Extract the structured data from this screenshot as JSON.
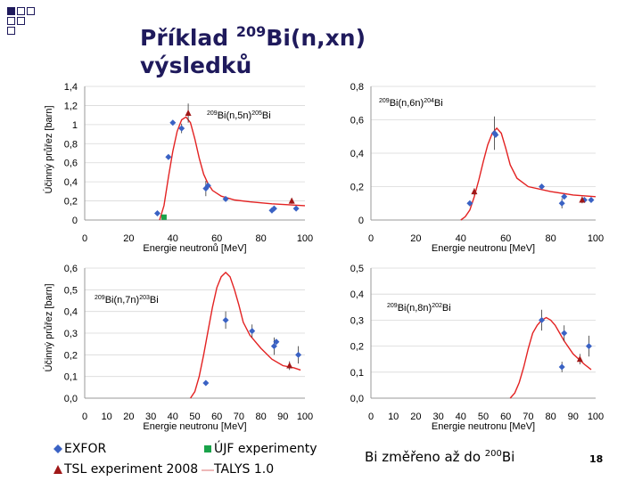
{
  "slide": {
    "title_line1_prefix": "Příklad ",
    "title_sup": "209",
    "title_line1_suffix": "Bi(n,xn)",
    "title_line2": "výsledků",
    "note_prefix": "Bi změřeno až do ",
    "note_sup": "200",
    "note_suffix": "Bi",
    "page_number": "18"
  },
  "legend": {
    "exfor": "EXFOR",
    "ujf": "ÚJF experimenty",
    "tsl": "TSL experiment 2008",
    "talys": "TALYS 1.0"
  },
  "colors": {
    "exfor": "#3a62c4",
    "ujf": "#1aa34a",
    "tsl": "#a01818",
    "talys": "#e32222",
    "title": "#1f1a5c",
    "corner": "#1f1a5c"
  },
  "chart_data": [
    {
      "type": "scatter",
      "title_sup": "209",
      "title_main": "Bi(n,5n)",
      "title_sup2": "205",
      "title_end": "Bi",
      "xlabel": "Energie neutronů [MeV]",
      "ylabel": "Účinný průřez [barn]",
      "xlim": [
        0,
        100
      ],
      "ylim": [
        0,
        1.4
      ],
      "xticks": [
        "0",
        "20",
        "40",
        "60",
        "80",
        "100"
      ],
      "yticks": [
        "0",
        "0,2",
        "0,4",
        "0,6",
        "0,8",
        "1",
        "1,2",
        "1,4"
      ],
      "ytick_values": [
        0,
        0.2,
        0.4,
        0.6,
        0.8,
        1.0,
        1.2,
        1.4
      ],
      "talys": [
        [
          34,
          0
        ],
        [
          36,
          0.15
        ],
        [
          38,
          0.45
        ],
        [
          40,
          0.72
        ],
        [
          42,
          0.93
        ],
        [
          44,
          1.05
        ],
        [
          46,
          1.08
        ],
        [
          48,
          1.02
        ],
        [
          50,
          0.85
        ],
        [
          52,
          0.65
        ],
        [
          54,
          0.48
        ],
        [
          56,
          0.38
        ],
        [
          58,
          0.31
        ],
        [
          62,
          0.25
        ],
        [
          68,
          0.21
        ],
        [
          75,
          0.19
        ],
        [
          85,
          0.17
        ],
        [
          100,
          0.15
        ]
      ],
      "exfor": [
        [
          33,
          0.07
        ],
        [
          38,
          0.66
        ],
        [
          40,
          1.02
        ],
        [
          44,
          0.96
        ],
        [
          55,
          0.33
        ],
        [
          56,
          0.36
        ],
        [
          64,
          0.22
        ],
        [
          85,
          0.1
        ],
        [
          86,
          0.12
        ],
        [
          96,
          0.12
        ]
      ],
      "exfor_err": [
        0,
        0,
        0,
        0.05,
        0.08,
        0,
        0,
        0.03,
        0,
        0
      ],
      "ujf": [
        [
          36,
          0.03
        ]
      ],
      "tsl": [
        [
          47,
          1.12
        ],
        [
          94,
          0.2
        ]
      ],
      "tsl_err": [
        0.1,
        0.03
      ]
    },
    {
      "type": "scatter",
      "title_sup": "209",
      "title_main": "Bi(n,6n)",
      "title_sup2": "204",
      "title_end": "Bi",
      "xlabel": "Energie neutronu [MeV]",
      "ylabel": "",
      "xlim": [
        0,
        100
      ],
      "ylim": [
        0,
        0.8
      ],
      "xticks": [
        "0",
        "20",
        "40",
        "60",
        "80",
        "100"
      ],
      "yticks": [
        "0",
        "0,2",
        "0,4",
        "0,6",
        "0,8"
      ],
      "ytick_values": [
        0,
        0.2,
        0.4,
        0.6,
        0.8
      ],
      "talys": [
        [
          40,
          0
        ],
        [
          42,
          0.02
        ],
        [
          44,
          0.06
        ],
        [
          46,
          0.14
        ],
        [
          48,
          0.24
        ],
        [
          50,
          0.35
        ],
        [
          52,
          0.45
        ],
        [
          54,
          0.52
        ],
        [
          56,
          0.55
        ],
        [
          58,
          0.52
        ],
        [
          60,
          0.43
        ],
        [
          62,
          0.33
        ],
        [
          65,
          0.25
        ],
        [
          70,
          0.2
        ],
        [
          80,
          0.17
        ],
        [
          90,
          0.15
        ],
        [
          100,
          0.14
        ]
      ],
      "exfor": [
        [
          44,
          0.1
        ],
        [
          55,
          0.52
        ],
        [
          55.5,
          0.51
        ],
        [
          76,
          0.2
        ],
        [
          85,
          0.1
        ],
        [
          86,
          0.14
        ],
        [
          95,
          0.12
        ],
        [
          98,
          0.12
        ]
      ],
      "exfor_err": [
        0,
        0.1,
        0,
        0,
        0.03,
        0,
        0,
        0
      ],
      "ujf": [],
      "tsl": [
        [
          46,
          0.17
        ],
        [
          94,
          0.12
        ]
      ],
      "tsl_err": [
        0.02,
        0.02
      ]
    },
    {
      "type": "scatter",
      "title_sup": "209",
      "title_main": "Bi(n,7n)",
      "title_sup2": "203",
      "title_end": "Bi",
      "xlabel": "Energie neutronu [MeV]",
      "ylabel": "Účinný průřez [barn]",
      "xlim": [
        0,
        100
      ],
      "ylim": [
        0,
        0.6
      ],
      "xticks": [
        "0",
        "10",
        "20",
        "30",
        "40",
        "50",
        "60",
        "70",
        "80",
        "90",
        "100"
      ],
      "yticks": [
        "0,0",
        "0,1",
        "0,2",
        "0,3",
        "0,4",
        "0,5",
        "0,6"
      ],
      "ytick_values": [
        0,
        0.1,
        0.2,
        0.3,
        0.4,
        0.5,
        0.6
      ],
      "talys": [
        [
          48,
          0
        ],
        [
          50,
          0.03
        ],
        [
          52,
          0.1
        ],
        [
          54,
          0.2
        ],
        [
          56,
          0.31
        ],
        [
          58,
          0.42
        ],
        [
          60,
          0.51
        ],
        [
          62,
          0.56
        ],
        [
          64,
          0.58
        ],
        [
          66,
          0.56
        ],
        [
          68,
          0.5
        ],
        [
          70,
          0.43
        ],
        [
          72,
          0.35
        ],
        [
          75,
          0.29
        ],
        [
          80,
          0.23
        ],
        [
          85,
          0.18
        ],
        [
          90,
          0.15
        ],
        [
          95,
          0.14
        ],
        [
          98,
          0.13
        ]
      ],
      "exfor": [
        [
          55,
          0.07
        ],
        [
          64,
          0.36
        ],
        [
          76,
          0.31
        ],
        [
          86,
          0.24
        ],
        [
          87,
          0.26
        ],
        [
          97,
          0.2
        ]
      ],
      "exfor_err": [
        0.01,
        0.04,
        0.03,
        0.04,
        0,
        0.04
      ],
      "ujf": [],
      "tsl": [
        [
          93,
          0.15
        ]
      ],
      "tsl_err": [
        0.02
      ]
    },
    {
      "type": "scatter",
      "title_sup": "209",
      "title_main": "Bi(n,8n)",
      "title_sup2": "202",
      "title_end": "Bi",
      "xlabel": "Energie neutronu [MeV]",
      "ylabel": "",
      "xlim": [
        0,
        100
      ],
      "ylim": [
        0,
        0.5
      ],
      "xticks": [
        "0",
        "10",
        "20",
        "30",
        "40",
        "50",
        "60",
        "70",
        "80",
        "90",
        "100"
      ],
      "yticks": [
        "0,0",
        "0,1",
        "0,2",
        "0,3",
        "0,4",
        "0,5"
      ],
      "ytick_values": [
        0,
        0.1,
        0.2,
        0.3,
        0.4,
        0.5
      ],
      "talys": [
        [
          62,
          0
        ],
        [
          64,
          0.02
        ],
        [
          66,
          0.06
        ],
        [
          68,
          0.12
        ],
        [
          70,
          0.19
        ],
        [
          72,
          0.25
        ],
        [
          74,
          0.28
        ],
        [
          76,
          0.3
        ],
        [
          78,
          0.31
        ],
        [
          80,
          0.3
        ],
        [
          82,
          0.28
        ],
        [
          84,
          0.25
        ],
        [
          86,
          0.22
        ],
        [
          90,
          0.17
        ],
        [
          95,
          0.13
        ],
        [
          98,
          0.11
        ]
      ],
      "exfor": [
        [
          76,
          0.3
        ],
        [
          85,
          0.12
        ],
        [
          86,
          0.25
        ],
        [
          97,
          0.2
        ]
      ],
      "exfor_err": [
        0.04,
        0.02,
        0.03,
        0.04
      ],
      "ujf": [],
      "tsl": [
        [
          93,
          0.15
        ]
      ],
      "tsl_err": [
        0.02
      ]
    }
  ]
}
